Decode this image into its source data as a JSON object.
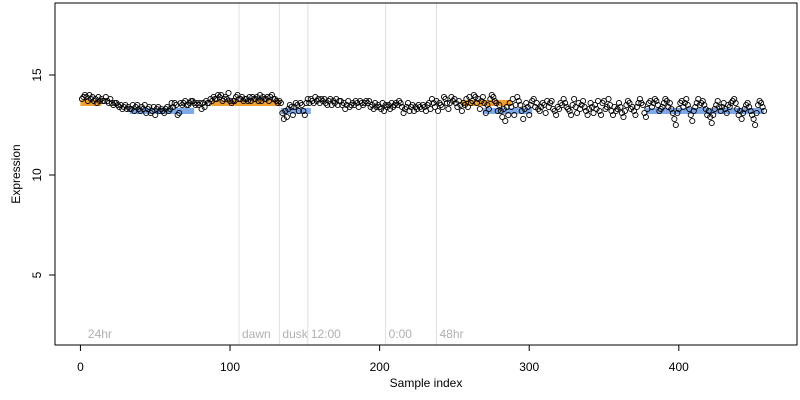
{
  "chart_data": {
    "type": "scatter",
    "xlabel": "Sample index",
    "ylabel": "Expression",
    "xlim": [
      -17,
      479
    ],
    "ylim": [
      1.5,
      18.6
    ],
    "xticks": [
      0,
      100,
      200,
      300,
      400
    ],
    "yticks": [
      5,
      10,
      15
    ],
    "grid": false,
    "phase_markers": [
      {
        "label": "24hr",
        "x": 3,
        "line": false
      },
      {
        "label": "dawn",
        "x": 106,
        "line": true
      },
      {
        "label": "dusk",
        "x": 133,
        "line": true
      },
      {
        "label": "12:00",
        "x": 152,
        "line": true
      },
      {
        "label": "0:00",
        "x": 204,
        "line": true
      },
      {
        "label": "48hr",
        "x": 238,
        "line": true
      }
    ],
    "series_colors": {
      "point_outline": "#000000",
      "highlight_high": "#f0a030",
      "highlight_low": "#7fa8e8"
    },
    "points_y": [
      13.8,
      13.9,
      14.0,
      13.9,
      13.7,
      14.0,
      13.8,
      13.9,
      13.7,
      13.8,
      13.6,
      13.9,
      13.7,
      13.8,
      13.7,
      13.7,
      13.9,
      13.7,
      13.6,
      13.8,
      13.6,
      13.5,
      13.6,
      13.6,
      13.5,
      13.4,
      13.5,
      13.3,
      13.4,
      13.5,
      13.3,
      13.4,
      13.3,
      13.3,
      13.5,
      13.2,
      13.4,
      13.5,
      13.3,
      13.2,
      13.4,
      13.3,
      13.5,
      13.1,
      13.3,
      13.4,
      13.1,
      13.2,
      13.4,
      13.0,
      13.3,
      13.4,
      13.2,
      13.3,
      13.2,
      13.1,
      13.3,
      13.4,
      13.2,
      13.3,
      13.6,
      13.4,
      13.6,
      13.5,
      13.0,
      13.1,
      13.6,
      13.5,
      13.6,
      13.7,
      13.5,
      13.5,
      13.6,
      13.7,
      13.7,
      13.6,
      13.5,
      13.6,
      13.5,
      13.6,
      13.3,
      13.6,
      13.4,
      13.7,
      13.6,
      13.6,
      13.8,
      13.7,
      13.9,
      13.8,
      13.8,
      14.0,
      13.9,
      14.0,
      13.7,
      13.8,
      13.9,
      13.8,
      14.1,
      13.7,
      13.6,
      13.7,
      13.7,
      13.9,
      14.0,
      13.8,
      13.8,
      13.9,
      13.7,
      13.8,
      13.8,
      13.7,
      13.9,
      13.7,
      13.9,
      13.8,
      13.8,
      13.9,
      13.7,
      14.0,
      13.7,
      13.9,
      13.8,
      13.8,
      13.9,
      13.7,
      13.9,
      14.0,
      13.8,
      13.8,
      13.7,
      13.6,
      13.7,
      13.6,
      13.1,
      12.8,
      13.2,
      12.9,
      13.3,
      13.5,
      13.4,
      13.0,
      13.4,
      13.6,
      13.5,
      13.2,
      13.6,
      13.5,
      13.2,
      13.0,
      13.6,
      13.8,
      13.6,
      13.8,
      13.7,
      13.6,
      13.9,
      13.7,
      13.8,
      13.6,
      13.8,
      13.7,
      13.8,
      13.6,
      13.5,
      13.7,
      13.8,
      13.5,
      13.7,
      13.6,
      13.8,
      13.5,
      13.7,
      13.7,
      13.5,
      13.6,
      13.3,
      13.5,
      13.7,
      13.4,
      13.5,
      13.6,
      13.5,
      13.7,
      13.6,
      13.4,
      13.7,
      13.6,
      13.5,
      13.6,
      13.7,
      13.6,
      13.7,
      13.4,
      13.5,
      13.3,
      13.6,
      13.4,
      13.5,
      13.4,
      13.3,
      13.6,
      13.2,
      13.5,
      13.4,
      13.5,
      13.3,
      13.6,
      13.4,
      13.5,
      13.6,
      13.5,
      13.7,
      13.6,
      13.4,
      13.1,
      13.3,
      13.4,
      13.6,
      13.2,
      13.4,
      13.5,
      13.2,
      13.4,
      13.3,
      13.5,
      13.4,
      13.3,
      13.5,
      13.4,
      13.2,
      13.5,
      13.6,
      13.3,
      13.8,
      13.6,
      13.4,
      13.7,
      13.2,
      13.6,
      13.5,
      13.4,
      13.9,
      13.8,
      13.6,
      13.3,
      13.6,
      13.9,
      13.7,
      13.8,
      13.6,
      13.4,
      13.7,
      13.5,
      13.2,
      13.6,
      13.5,
      13.8,
      13.4,
      13.9,
      13.6,
      13.7,
      14.0,
      13.9,
      13.6,
      13.8,
      13.3,
      13.7,
      13.9,
      13.6,
      13.1,
      13.5,
      13.3,
      13.8,
      14.0,
      13.9,
      13.7,
      13.6,
      13.2,
      13.5,
      13.2,
      12.9,
      13.3,
      12.7,
      13.4,
      13.0,
      13.6,
      13.4,
      13.8,
      13.0,
      13.5,
      13.9,
      13.7,
      13.5,
      13.2,
      12.8,
      13.3,
      13.6,
      13.4,
      13.0,
      13.5,
      13.7,
      13.8,
      13.4,
      13.6,
      13.3,
      13.2,
      13.4,
      13.6,
      13.5,
      13.1,
      13.7,
      13.4,
      13.6,
      13.7,
      13.3,
      13.2,
      13.0,
      13.4,
      13.3,
      13.6,
      13.5,
      13.8,
      13.6,
      13.4,
      13.3,
      13.2,
      13.0,
      13.5,
      13.8,
      13.4,
      13.1,
      13.6,
      13.3,
      13.5,
      13.7,
      13.4,
      13.2,
      13.0,
      13.3,
      13.6,
      13.4,
      13.1,
      13.5,
      13.3,
      13.7,
      13.2,
      13.0,
      13.6,
      13.7,
      13.3,
      13.4,
      13.8,
      13.5,
      13.2,
      13.0,
      13.4,
      13.2,
      13.3,
      13.6,
      13.4,
      13.1,
      12.9,
      13.2,
      13.5,
      13.7,
      13.6,
      13.3,
      13.4,
      13.2,
      13.0,
      13.4,
      13.6,
      13.8,
      13.6,
      13.5,
      13.1,
      12.9,
      13.3,
      13.6,
      13.7,
      13.4,
      13.6,
      13.8,
      13.7,
      13.5,
      13.2,
      13.3,
      13.4,
      13.6,
      13.8,
      13.7,
      13.4,
      13.6,
      13.3,
      13.1,
      12.8,
      12.5,
      13.1,
      13.3,
      13.6,
      13.7,
      13.4,
      13.6,
      13.8,
      13.5,
      13.3,
      13.0,
      12.7,
      13.2,
      13.4,
      13.6,
      13.8,
      13.5,
      13.6,
      13.7,
      13.5,
      13.3,
      13.0,
      13.2,
      12.9,
      12.6,
      13.0,
      13.3,
      13.5,
      13.7,
      13.4,
      13.2,
      13.4,
      13.6,
      13.3,
      13.1,
      13.5,
      13.4,
      13.6,
      13.7,
      13.8,
      13.6,
      13.3,
      13.0,
      13.2,
      12.8,
      13.1,
      13.3,
      13.5,
      13.6,
      13.4,
      13.2,
      13.0,
      12.8,
      12.5,
      13.1,
      13.5,
      13.7,
      13.6,
      13.4,
      13.2
    ],
    "highlight_high_x": [
      2,
      3,
      4,
      5,
      6,
      7,
      8,
      9,
      10,
      11,
      12,
      90,
      91,
      92,
      93,
      94,
      95,
      96,
      97,
      98,
      99,
      100,
      101,
      102,
      103,
      104,
      105,
      106,
      107,
      108,
      109,
      110,
      111,
      112,
      113,
      114,
      115,
      116,
      117,
      118,
      119,
      120,
      121,
      122,
      123,
      124,
      125,
      126,
      127,
      128,
      129,
      130,
      131,
      132,
      257,
      258,
      259,
      260,
      261,
      262,
      263,
      264,
      265,
      266,
      267,
      268,
      269,
      270,
      271,
      272,
      273,
      274,
      275,
      276,
      277,
      278,
      279,
      280,
      281,
      282,
      283,
      284,
      285,
      286
    ],
    "highlight_high_y": 13.6,
    "highlight_low_x": [
      35,
      36,
      37,
      38,
      39,
      40,
      41,
      42,
      43,
      44,
      45,
      46,
      47,
      48,
      49,
      50,
      51,
      52,
      53,
      54,
      55,
      56,
      57,
      58,
      59,
      60,
      61,
      62,
      63,
      64,
      65,
      66,
      67,
      68,
      69,
      70,
      71,
      72,
      73,
      74,
      136,
      137,
      138,
      139,
      140,
      141,
      142,
      143,
      144,
      145,
      146,
      147,
      148,
      149,
      150,
      151,
      152,
      271,
      272,
      273,
      274,
      275,
      276,
      277,
      278,
      279,
      280,
      281,
      282,
      283,
      284,
      285,
      286,
      287,
      288,
      289,
      290,
      291,
      292,
      293,
      294,
      295,
      296,
      297,
      298,
      299,
      300,
      380,
      381,
      382,
      383,
      384,
      385,
      386,
      387,
      388,
      389,
      390,
      391,
      392,
      393,
      394,
      395,
      396,
      397,
      398,
      399,
      400,
      401,
      402,
      403,
      404,
      405,
      406,
      407,
      408,
      409,
      410,
      411,
      412,
      413,
      414,
      415,
      416,
      417,
      418,
      419,
      420,
      421,
      422,
      423,
      424,
      425,
      426,
      427,
      428,
      429,
      430,
      431,
      432,
      433,
      434,
      435,
      436,
      437,
      438,
      439,
      440,
      441,
      442,
      443,
      444,
      445,
      446,
      447,
      448,
      449,
      450,
      451,
      452,
      453,
      454,
      455
    ],
    "highlight_low_y": 13.2
  }
}
